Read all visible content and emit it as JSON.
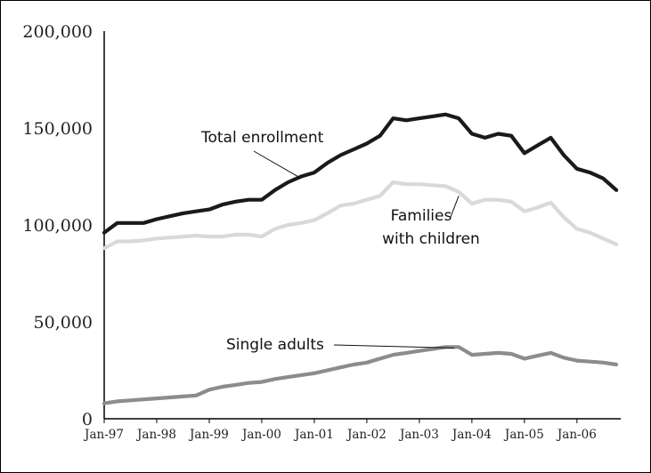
{
  "chart_data": {
    "type": "line",
    "title": "",
    "xlabel": "",
    "ylabel": "",
    "ylim": [
      0,
      200000
    ],
    "yticks": [
      0,
      50000,
      100000,
      150000,
      200000
    ],
    "ytick_labels": [
      "0",
      "50,000",
      "100,000",
      "150,000",
      "200,000"
    ],
    "x_tick_labels": [
      "Jan-97",
      "Jan-98",
      "Jan-99",
      "Jan-00",
      "Jan-01",
      "Jan-02",
      "Jan-03",
      "Jan-04",
      "Jan-05",
      "Jan-06"
    ],
    "x_tick_dates": [
      "1997-01",
      "1998-01",
      "1999-01",
      "2000-01",
      "2001-01",
      "2002-01",
      "2003-01",
      "2004-01",
      "2005-01",
      "2006-01"
    ],
    "xlim": [
      "1997-01",
      "2006-11"
    ],
    "grid": false,
    "series": [
      {
        "name": "Total enrollment",
        "color": "#1a1a1a",
        "x": [
          "1997-01",
          "1997-04",
          "1997-07",
          "1997-10",
          "1998-01",
          "1998-04",
          "1998-07",
          "1998-10",
          "1999-01",
          "1999-04",
          "1999-07",
          "1999-10",
          "2000-01",
          "2000-04",
          "2000-07",
          "2000-10",
          "2001-01",
          "2001-04",
          "2001-07",
          "2001-10",
          "2002-01",
          "2002-04",
          "2002-07",
          "2002-10",
          "2003-01",
          "2003-04",
          "2003-07",
          "2003-10",
          "2004-01",
          "2004-04",
          "2004-07",
          "2004-10",
          "2005-01",
          "2005-04",
          "2005-07",
          "2005-10",
          "2006-01",
          "2006-04",
          "2006-07",
          "2006-10"
        ],
        "values": [
          96000,
          101000,
          101000,
          101000,
          103000,
          104500,
          106000,
          107000,
          108000,
          110500,
          112000,
          113000,
          113000,
          118000,
          122000,
          125000,
          127000,
          132000,
          136000,
          139000,
          142000,
          146000,
          155000,
          154000,
          155000,
          156000,
          157000,
          155000,
          147000,
          145000,
          147000,
          146000,
          137000,
          141000,
          145000,
          136000,
          129000,
          127000,
          124000,
          118000
        ]
      },
      {
        "name": "Families with children",
        "color": "#d9d9d9",
        "x": [
          "1997-01",
          "1997-04",
          "1997-07",
          "1997-10",
          "1998-01",
          "1998-04",
          "1998-07",
          "1998-10",
          "1999-01",
          "1999-04",
          "1999-07",
          "1999-10",
          "2000-01",
          "2000-04",
          "2000-07",
          "2000-10",
          "2001-01",
          "2001-04",
          "2001-07",
          "2001-10",
          "2002-01",
          "2002-04",
          "2002-07",
          "2002-10",
          "2003-01",
          "2003-04",
          "2003-07",
          "2003-10",
          "2004-01",
          "2004-04",
          "2004-07",
          "2004-10",
          "2005-01",
          "2005-04",
          "2005-07",
          "2005-10",
          "2006-01",
          "2006-04",
          "2006-07",
          "2006-10"
        ],
        "values": [
          88000,
          91500,
          91500,
          92000,
          93000,
          93500,
          94000,
          94500,
          94000,
          94000,
          95000,
          95000,
          94000,
          98000,
          100000,
          101000,
          102500,
          106000,
          110000,
          111000,
          113000,
          115000,
          122000,
          121000,
          121000,
          120500,
          120000,
          117000,
          111000,
          113000,
          113000,
          112000,
          107000,
          109000,
          111500,
          104000,
          98000,
          96000,
          93000,
          90000
        ]
      },
      {
        "name": "Single adults",
        "color": "#8c8c8c",
        "x": [
          "1997-01",
          "1997-04",
          "1997-07",
          "1997-10",
          "1998-01",
          "1998-04",
          "1998-07",
          "1998-10",
          "1999-01",
          "1999-04",
          "1999-07",
          "1999-10",
          "2000-01",
          "2000-04",
          "2000-07",
          "2000-10",
          "2001-01",
          "2001-04",
          "2001-07",
          "2001-10",
          "2002-01",
          "2002-04",
          "2002-07",
          "2002-10",
          "2003-01",
          "2003-04",
          "2003-07",
          "2003-10",
          "2004-01",
          "2004-04",
          "2004-07",
          "2004-10",
          "2005-01",
          "2005-04",
          "2005-07",
          "2005-10",
          "2006-01",
          "2006-04",
          "2006-07",
          "2006-10"
        ],
        "values": [
          8000,
          9000,
          9500,
          10000,
          10500,
          11000,
          11500,
          12000,
          15000,
          16500,
          17500,
          18500,
          19000,
          20500,
          21500,
          22500,
          23500,
          25000,
          26500,
          28000,
          29000,
          31000,
          33000,
          34000,
          35000,
          36000,
          37000,
          37000,
          33000,
          33500,
          34000,
          33500,
          31000,
          32500,
          34000,
          31500,
          30000,
          29500,
          29000,
          28000
        ]
      }
    ],
    "annotations": [
      {
        "text": "Total enrollment",
        "series": "Total enrollment",
        "line_to": [
          "2000-10",
          124000
        ]
      },
      {
        "text": "Families",
        "series": "Families with children",
        "line_to": [
          "2003-10",
          115000
        ]
      },
      {
        "text": "with children",
        "series": "Families with children"
      },
      {
        "text": "Single adults",
        "series": "Single adults",
        "line_to": [
          "2003-09",
          36500
        ]
      }
    ]
  }
}
